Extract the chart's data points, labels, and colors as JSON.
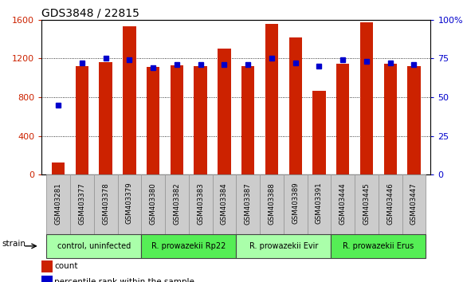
{
  "title": "GDS3848 / 22815",
  "samples": [
    "GSM403281",
    "GSM403377",
    "GSM403378",
    "GSM403379",
    "GSM403380",
    "GSM403382",
    "GSM403383",
    "GSM403384",
    "GSM403387",
    "GSM403388",
    "GSM403389",
    "GSM403391",
    "GSM403444",
    "GSM403445",
    "GSM403446",
    "GSM403447"
  ],
  "counts": [
    130,
    1120,
    1160,
    1530,
    1110,
    1130,
    1120,
    1300,
    1120,
    1560,
    1420,
    870,
    1150,
    1570,
    1150,
    1120
  ],
  "percentile_ranks": [
    45,
    72,
    75,
    74,
    69,
    71,
    71,
    71,
    71,
    75,
    72,
    70,
    74,
    73,
    72,
    71
  ],
  "groups": [
    {
      "label": "control, uninfected",
      "start": 0,
      "end": 4,
      "color": "#aaffaa"
    },
    {
      "label": "R. prowazekii Rp22",
      "start": 4,
      "end": 8,
      "color": "#55ee55"
    },
    {
      "label": "R. prowazekii Evir",
      "start": 8,
      "end": 12,
      "color": "#aaffaa"
    },
    {
      "label": "R. prowazekii Erus",
      "start": 12,
      "end": 16,
      "color": "#55ee55"
    }
  ],
  "bar_color": "#cc2200",
  "dot_color": "#0000cc",
  "ylim_left": [
    0,
    1600
  ],
  "ylim_right": [
    0,
    100
  ],
  "yticks_left": [
    0,
    400,
    800,
    1200,
    1600
  ],
  "yticks_right": [
    0,
    25,
    50,
    75,
    100
  ],
  "yticklabels_right": [
    "0",
    "25",
    "50",
    "75",
    "100%"
  ],
  "strain_label": "strain",
  "legend_count": "count",
  "legend_percentile": "percentile rank within the sample",
  "bg_color": "#ffffff",
  "tick_label_color_left": "#cc2200",
  "tick_label_color_right": "#0000cc",
  "bar_width": 0.55
}
